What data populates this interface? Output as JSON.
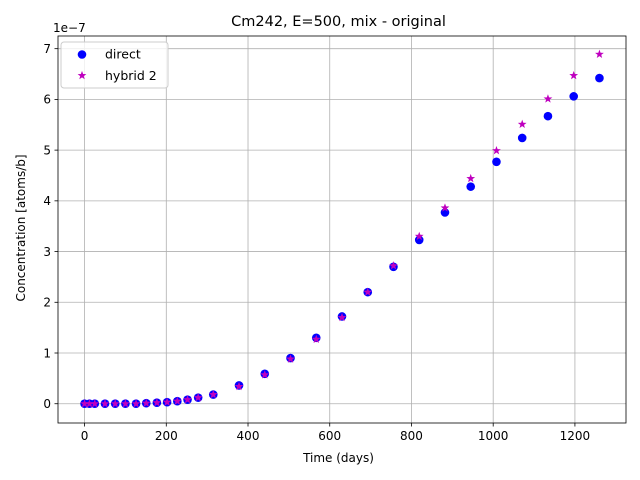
{
  "chart_data": {
    "type": "scatter",
    "title": "Cm242, E=500, mix - original",
    "xlabel": "Time (days)",
    "ylabel": "Concentration [atoms/b]",
    "y_offset_text": "1e−7",
    "y_scale_exponent": -7,
    "xlim": [
      -65,
      1325
    ],
    "ylim": [
      -0.38,
      7.25
    ],
    "xticks": [
      0,
      200,
      400,
      600,
      800,
      1000,
      1200
    ],
    "yticks": [
      0,
      1,
      2,
      3,
      4,
      5,
      6,
      7
    ],
    "grid": true,
    "legend_position": "top-left",
    "series": [
      {
        "name": "direct",
        "marker": "circle",
        "color": "#0000ff",
        "x": [
          0,
          12,
          25,
          50,
          75,
          100,
          126,
          151,
          177,
          202,
          227,
          252,
          278,
          315,
          378,
          441,
          504,
          567,
          630,
          693,
          756,
          819,
          882,
          945,
          1008,
          1071,
          1134,
          1197,
          1260
        ],
        "y": [
          0,
          0,
          0,
          0,
          0,
          0,
          0,
          0.01,
          0.02,
          0.03,
          0.05,
          0.08,
          0.12,
          0.18,
          0.36,
          0.59,
          0.9,
          1.3,
          1.72,
          2.2,
          2.7,
          3.23,
          3.77,
          4.28,
          4.77,
          5.24,
          5.67,
          6.06,
          6.42
        ]
      },
      {
        "name": "hybrid 2",
        "marker": "star",
        "color": "#bf00bf",
        "x": [
          0,
          12,
          25,
          50,
          75,
          100,
          126,
          151,
          177,
          202,
          227,
          252,
          278,
          315,
          378,
          441,
          504,
          567,
          630,
          693,
          756,
          819,
          882,
          945,
          1008,
          1071,
          1134,
          1197,
          1260
        ],
        "y": [
          0,
          0,
          0,
          0,
          0,
          0,
          0,
          0.01,
          0.02,
          0.03,
          0.05,
          0.08,
          0.12,
          0.18,
          0.34,
          0.57,
          0.88,
          1.27,
          1.7,
          2.2,
          2.72,
          3.3,
          3.86,
          4.44,
          4.99,
          5.51,
          6.01,
          6.47,
          6.89
        ]
      }
    ]
  }
}
